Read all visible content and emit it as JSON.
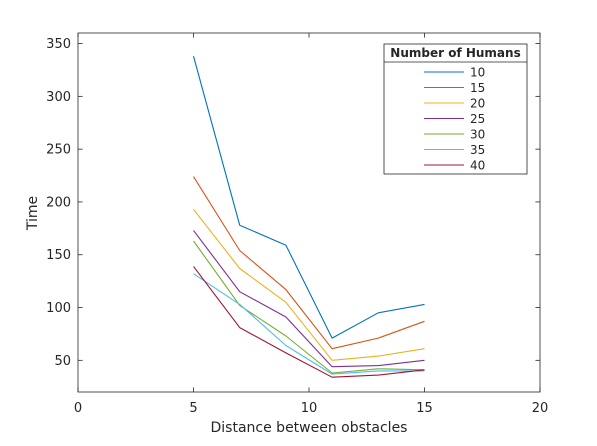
{
  "chart_data": {
    "type": "line",
    "title": "",
    "xlabel": "Distance between obstacles",
    "ylabel": "Time",
    "xlim": [
      0,
      20
    ],
    "ylim": [
      20,
      360
    ],
    "x_ticks": [
      "0",
      "5",
      "10",
      "15",
      "20"
    ],
    "y_ticks": [
      "50",
      "100",
      "150",
      "200",
      "250",
      "300",
      "350"
    ],
    "grid": false,
    "legend": {
      "title": "Number of Humans",
      "placement": "top-right"
    },
    "x": [
      5,
      7,
      9,
      11,
      13,
      15
    ],
    "series": [
      {
        "name": "10",
        "color": "#0072BD",
        "values": [
          338,
          178,
          159,
          71,
          95,
          103
        ]
      },
      {
        "name": "15",
        "color": "#D95319",
        "values": [
          224,
          154,
          117,
          61,
          71,
          87
        ]
      },
      {
        "name": "20",
        "color": "#EDB120",
        "values": [
          193,
          137,
          105,
          50,
          54,
          61
        ]
      },
      {
        "name": "25",
        "color": "#7E2F8E",
        "values": [
          173,
          115,
          91,
          44,
          45,
          50
        ]
      },
      {
        "name": "30",
        "color": "#77AC30",
        "values": [
          163,
          102,
          73,
          38,
          42,
          41
        ]
      },
      {
        "name": "35",
        "color": "#4DBEEE",
        "values": [
          132,
          103,
          64,
          37,
          40,
          40
        ]
      },
      {
        "name": "40",
        "color": "#A2142F",
        "values": [
          139,
          81,
          57,
          34,
          36,
          41
        ]
      }
    ]
  }
}
